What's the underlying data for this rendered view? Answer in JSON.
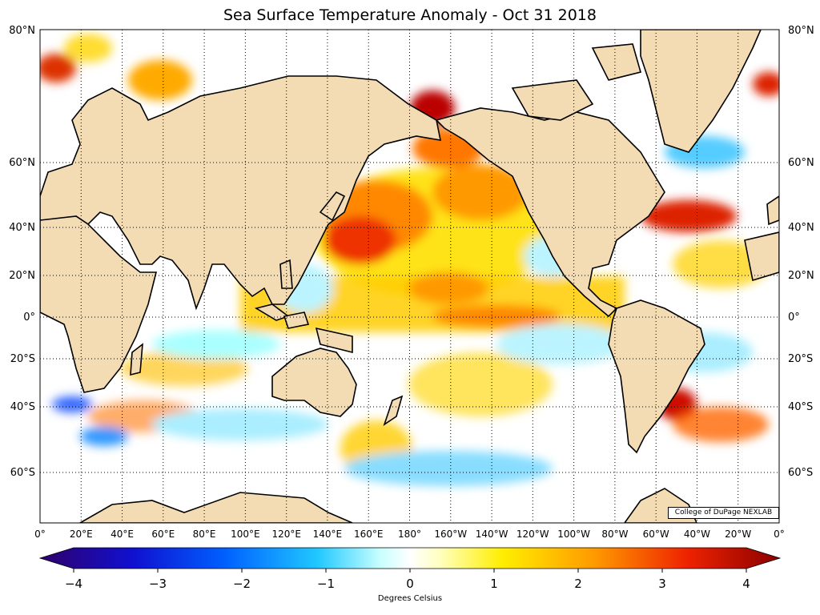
{
  "title": "Sea Surface Temperature Anomaly - Oct 31 2018",
  "credit": "College of DuPage NEXLAB",
  "lat_labels": [
    "80°N",
    "60°N",
    "40°N",
    "20°N",
    "0°",
    "20°S",
    "40°S",
    "60°S"
  ],
  "lon_labels": [
    "0°",
    "20°E",
    "40°E",
    "60°E",
    "80°E",
    "100°E",
    "120°E",
    "140°E",
    "160°E",
    "180°",
    "160°W",
    "140°W",
    "120°W",
    "100°W",
    "80°W",
    "60°W",
    "40°W",
    "20°W",
    "0°"
  ],
  "colorbar": {
    "label": "Degrees Celsius",
    "ticks": [
      "−4",
      "−3",
      "−2",
      "−1",
      "0",
      "1",
      "2",
      "3",
      "4"
    ],
    "range": [
      -4,
      4
    ]
  },
  "colors": {
    "land": "#f3dcb4",
    "ocean_neutral": "#ffffff",
    "warm_weak": "#ffff33",
    "warm_mid": "#ff9900",
    "warm_strong": "#cc0000",
    "cool_weak": "#99ffff",
    "cool_mid": "#33aaff",
    "cool_strong": "#0000aa",
    "frame": "#000000"
  }
}
